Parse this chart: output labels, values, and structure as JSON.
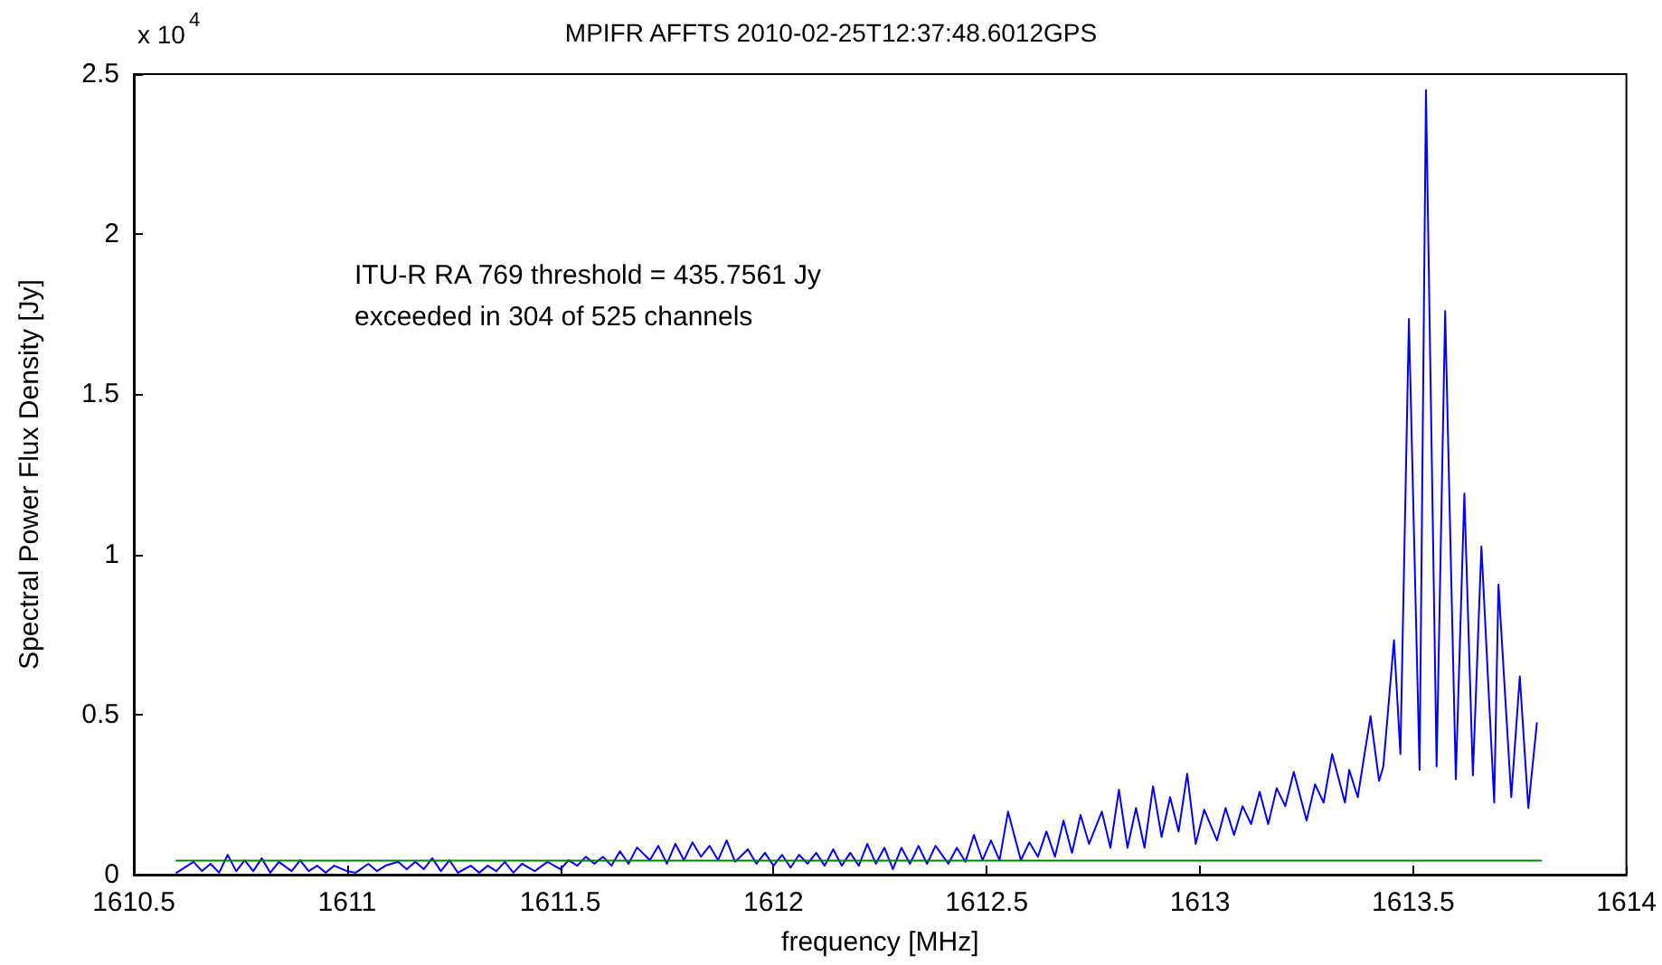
{
  "chart_data": {
    "type": "line",
    "title": "MPIFR AFFTS 2010-02-25T12:37:48.6012GPS",
    "xlabel": "frequency [MHz]",
    "ylabel": "Spectral Power Flux Density [Jy]",
    "annotations": [
      "x 10$^{4}$",
      "ITU-R RA 769 threshold = 435.7561 Jy",
      "exceeded in 304 of 525 channels"
    ],
    "xlim": [
      1610.5,
      1614
    ],
    "xticks": [
      1610.5,
      1611,
      1611.5,
      1612,
      1612.5,
      1613,
      1613.5,
      1614
    ],
    "ylim": [
      0,
      2.5
    ],
    "yticks": [
      0,
      0.5,
      1,
      1.5,
      2,
      2.5
    ],
    "marker": "none",
    "line_style": "solid",
    "series": [
      {
        "color": "#0000ff",
        "x": [
          1610.6,
          1610.64,
          1610.66,
          1610.68,
          1610.7,
          1610.72,
          1610.74,
          1610.76,
          1610.78,
          1610.8,
          1610.82,
          1610.84,
          1610.87,
          1610.89,
          1610.91,
          1610.93,
          1610.95,
          1610.97,
          1611.0,
          1611.02,
          1611.05,
          1611.07,
          1611.09,
          1611.12,
          1611.14,
          1611.16,
          1611.18,
          1611.2,
          1611.22,
          1611.24,
          1611.26,
          1611.29,
          1611.31,
          1611.33,
          1611.35,
          1611.37,
          1611.39,
          1611.41,
          1611.44,
          1611.47,
          1611.5,
          1611.52,
          1611.54,
          1611.56,
          1611.58,
          1611.6,
          1611.62,
          1611.64,
          1611.66,
          1611.68,
          1611.71,
          1611.73,
          1611.75,
          1611.77,
          1611.79,
          1611.81,
          1611.83,
          1611.85,
          1611.87,
          1611.89,
          1611.91,
          1611.94,
          1611.96,
          1611.98,
          1612.0,
          1612.02,
          1612.04,
          1612.06,
          1612.08,
          1612.1,
          1612.12,
          1612.14,
          1612.16,
          1612.18,
          1612.2,
          1612.22,
          1612.24,
          1612.26,
          1612.28,
          1612.3,
          1612.32,
          1612.34,
          1612.36,
          1612.38,
          1612.41,
          1612.43,
          1612.45,
          1612.47,
          1612.49,
          1612.51,
          1612.53,
          1612.55,
          1612.58,
          1612.6,
          1612.62,
          1612.64,
          1612.66,
          1612.68,
          1612.7,
          1612.72,
          1612.74,
          1612.77,
          1612.79,
          1612.81,
          1612.83,
          1612.85,
          1612.87,
          1612.89,
          1612.91,
          1612.93,
          1612.95,
          1612.97,
          1612.99,
          1613.01,
          1613.04,
          1613.06,
          1613.08,
          1613.1,
          1613.12,
          1613.14,
          1613.16,
          1613.18,
          1613.2,
          1613.22,
          1613.25,
          1613.27,
          1613.29,
          1613.31,
          1613.34,
          1613.35,
          1613.37,
          1613.4,
          1613.42,
          1613.43,
          1613.455,
          1613.47,
          1613.49,
          1613.515,
          1613.53,
          1613.555,
          1613.575,
          1613.6,
          1613.62,
          1613.64,
          1613.66,
          1613.69,
          1613.7,
          1613.73,
          1613.75,
          1613.77,
          1613.79
        ],
        "values": [
          0.006,
          0.04,
          0.011,
          0.034,
          0.006,
          0.062,
          0.011,
          0.045,
          0.011,
          0.051,
          0.006,
          0.04,
          0.011,
          0.045,
          0.011,
          0.028,
          0.006,
          0.028,
          0.011,
          0.006,
          0.034,
          0.011,
          0.028,
          0.04,
          0.017,
          0.04,
          0.017,
          0.051,
          0.011,
          0.045,
          0.006,
          0.028,
          0.006,
          0.028,
          0.011,
          0.04,
          0.006,
          0.034,
          0.011,
          0.04,
          0.017,
          0.045,
          0.028,
          0.056,
          0.034,
          0.056,
          0.028,
          0.073,
          0.034,
          0.085,
          0.045,
          0.09,
          0.034,
          0.096,
          0.045,
          0.101,
          0.056,
          0.09,
          0.045,
          0.107,
          0.04,
          0.079,
          0.034,
          0.068,
          0.028,
          0.062,
          0.022,
          0.062,
          0.034,
          0.068,
          0.028,
          0.079,
          0.028,
          0.068,
          0.028,
          0.096,
          0.034,
          0.084,
          0.017,
          0.084,
          0.034,
          0.09,
          0.034,
          0.09,
          0.034,
          0.084,
          0.04,
          0.124,
          0.045,
          0.107,
          0.045,
          0.197,
          0.045,
          0.101,
          0.056,
          0.135,
          0.056,
          0.169,
          0.068,
          0.186,
          0.096,
          0.197,
          0.084,
          0.265,
          0.084,
          0.208,
          0.084,
          0.276,
          0.118,
          0.242,
          0.135,
          0.315,
          0.096,
          0.203,
          0.107,
          0.208,
          0.124,
          0.214,
          0.158,
          0.259,
          0.158,
          0.27,
          0.214,
          0.321,
          0.169,
          0.282,
          0.225,
          0.377,
          0.225,
          0.327,
          0.242,
          0.495,
          0.293,
          0.338,
          0.732,
          0.377,
          1.735,
          0.327,
          2.45,
          0.338,
          1.76,
          0.298,
          1.19,
          0.31,
          1.025,
          0.225,
          0.906,
          0.242,
          0.619,
          0.208,
          0.473
        ]
      },
      {
        "color": "#008000",
        "x": [
          1610.6,
          1613.8
        ],
        "values": [
          0.044,
          0.044
        ]
      }
    ]
  }
}
